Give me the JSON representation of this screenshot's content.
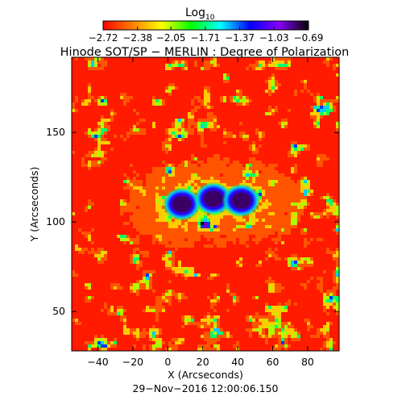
{
  "colorbar": {
    "label": "Log",
    "label_subscript": "10",
    "ticks": [
      "−2.72",
      "−2.38",
      "−2.05",
      "−1.71",
      "−1.37",
      "−1.03",
      "−0.69"
    ],
    "colors": [
      "#ff0000",
      "#ff7f00",
      "#ffff00",
      "#00ff00",
      "#00ffff",
      "#0000ff",
      "#8800ff",
      "#000000"
    ]
  },
  "chart_data": {
    "type": "heatmap",
    "title": "Hinode SOT/SP − MERLIN : Degree of Polarization",
    "xlabel": "X (Arcseconds)",
    "ylabel": "Y (Arcseconds)",
    "xlim": [
      -55,
      98
    ],
    "ylim": [
      28,
      192
    ],
    "x_ticks": [
      -40,
      -20,
      0,
      20,
      40,
      60,
      80
    ],
    "y_ticks": [
      50,
      100,
      150
    ],
    "value_range": [
      -2.72,
      -0.69
    ],
    "features": [
      {
        "kind": "sunspot",
        "x": 8,
        "y": 110,
        "value": -0.69
      },
      {
        "kind": "sunspot",
        "x": 26,
        "y": 113,
        "value": -0.69
      },
      {
        "kind": "sunspot",
        "x": 42,
        "y": 112,
        "value": -0.69
      }
    ]
  },
  "timestamp": "29−Nov−2016 12:00:06.150"
}
